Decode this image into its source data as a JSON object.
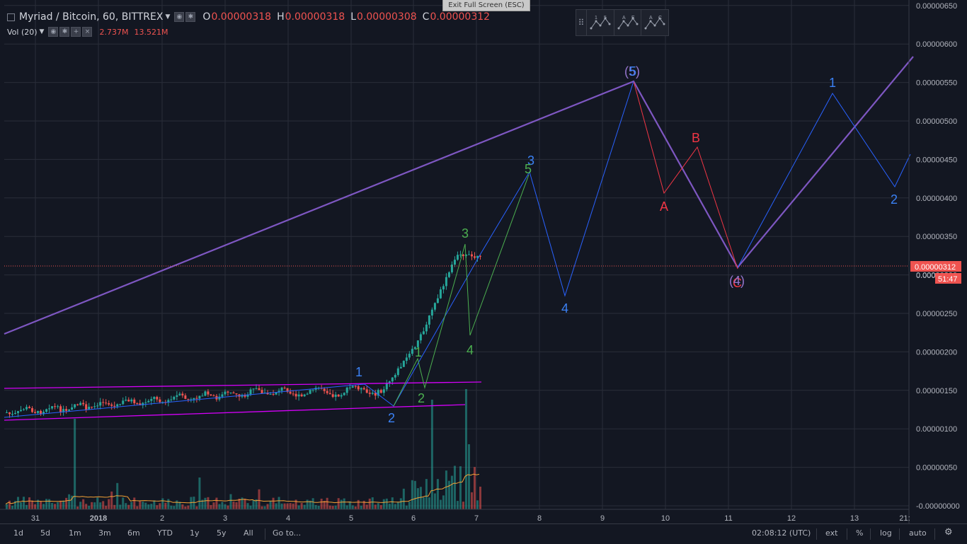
{
  "header": {
    "symbol": "Myriad / Bitcoin, 60, BITTREX",
    "o_label": "O",
    "o_value": "0.00000318",
    "h_label": "H",
    "h_value": "0.00000318",
    "l_label": "L",
    "l_value": "0.00000308",
    "c_label": "C",
    "c_value": "0.00000312",
    "vol_label": "Vol (20)",
    "vol_value1": "2.737M",
    "vol_value2": "13.521M"
  },
  "fullscreen_tooltip": "Exit Full Screen (ESC)",
  "pattern_tools": [
    {
      "name": "pattern-15",
      "l1": "1",
      "l2": "5"
    },
    {
      "name": "pattern-ae",
      "l1": "A",
      "l2": "E"
    },
    {
      "name": "pattern-ac",
      "l1": "A",
      "l2": "C"
    }
  ],
  "price_axis": {
    "ticks": [
      "0.00000650",
      "0.00000600",
      "0.00000550",
      "0.00000500",
      "0.00000450",
      "0.00000400",
      "0.00000350",
      "0.00000300",
      "0.00000250",
      "0.00000200",
      "0.00000150",
      "0.00000100",
      "0.00000050",
      "-0.00000000"
    ],
    "current_price_label": "0.00000312",
    "countdown_label": "51:47",
    "partial_label": "0.000"
  },
  "time_axis": {
    "ticks": [
      "31",
      "2018",
      "2",
      "3",
      "4",
      "5",
      "6",
      "7",
      "8",
      "9",
      "10",
      "11",
      "12",
      "13",
      "21:"
    ]
  },
  "waves": {
    "blue_small": [
      "1",
      "2",
      "3",
      "4"
    ],
    "green": [
      "1",
      "2",
      "3",
      "4",
      "5"
    ],
    "blue_large": [
      "1",
      "2",
      "3",
      "4"
    ],
    "purple": [
      "(5)",
      "(4)"
    ],
    "red": [
      "A",
      "B",
      "C"
    ],
    "label_3": "3",
    "label_5": "5"
  },
  "bottom_bar": {
    "ranges": [
      "1d",
      "5d",
      "1m",
      "3m",
      "6m",
      "YTD",
      "1y",
      "5y",
      "All"
    ],
    "goto": "Go to...",
    "clock": "02:08:12 (UTC)",
    "ext": "ext",
    "percent": "%",
    "log": "log",
    "auto": "auto"
  },
  "colors": {
    "background": "#131722",
    "up_candle": "#26a69a",
    "down_candle": "#ef5350",
    "blue_wave": "#2962ff",
    "blue_label": "#3b82f6",
    "green_wave": "#4caf50",
    "red_wave": "#f23645",
    "purple_wave": "#7e57c2",
    "channel": "#d500f9",
    "volume_ma": "#f4a236"
  }
}
